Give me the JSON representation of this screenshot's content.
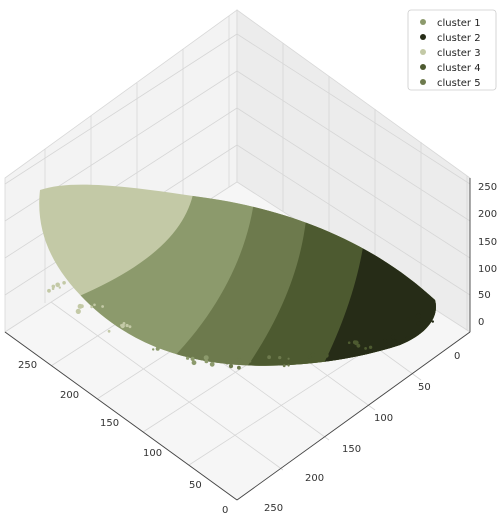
{
  "chart_data": {
    "type": "scatter",
    "projection": "3d",
    "title": "",
    "xlabel": "",
    "ylabel": "",
    "zlabel": "",
    "xlim": [
      0,
      255
    ],
    "ylim": [
      0,
      255
    ],
    "zlim": [
      0,
      255
    ],
    "grid": true,
    "legend_placement": "top-right",
    "ticks": {
      "x": [
        "250",
        "200",
        "150",
        "100",
        "50",
        "0"
      ],
      "y": [
        "0",
        "50",
        "100",
        "150",
        "200",
        "250"
      ],
      "z": [
        "0",
        "50",
        "100",
        "150",
        "200",
        "250"
      ]
    },
    "series": [
      {
        "name": "cluster 1",
        "color": "#8c9a6c"
      },
      {
        "name": "cluster 2",
        "color": "#262c17"
      },
      {
        "name": "cluster 3",
        "color": "#c3c9a6"
      },
      {
        "name": "cluster 4",
        "color": "#4d5a30"
      },
      {
        "name": "cluster 5",
        "color": "#6d7a4d"
      }
    ]
  }
}
